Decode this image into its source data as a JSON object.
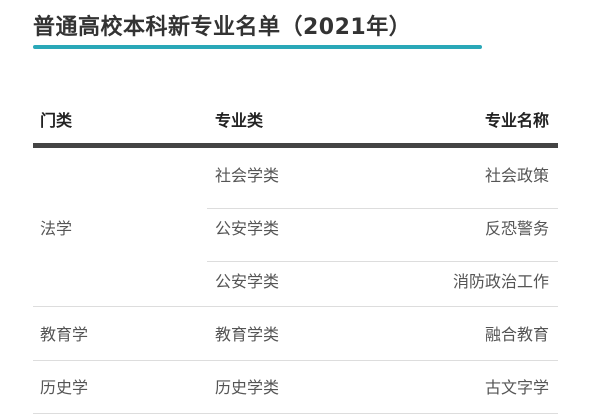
{
  "title": "普通高校本科新专业名单（2021年）",
  "accent_color": "#2aa8b8",
  "table": {
    "headers": [
      "门类",
      "专业类",
      "专业名称"
    ],
    "groups": [
      {
        "category": "法学",
        "rows": [
          {
            "class": "社会学类",
            "major": "社会政策"
          },
          {
            "class": "公安学类",
            "major": "反恐警务"
          },
          {
            "class": "公安学类",
            "major": "消防政治工作"
          }
        ]
      },
      {
        "category": "教育学",
        "rows": [
          {
            "class": "教育学类",
            "major": "融合教育"
          }
        ]
      },
      {
        "category": "历史学",
        "rows": [
          {
            "class": "历史学类",
            "major": "古文字学"
          }
        ]
      }
    ]
  }
}
